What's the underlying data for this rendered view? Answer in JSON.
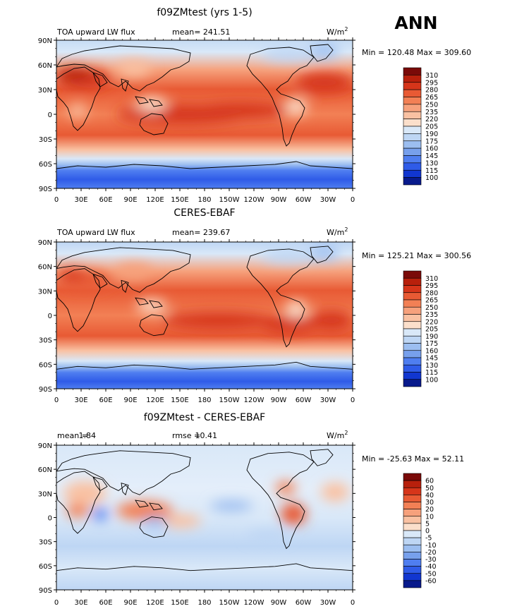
{
  "figure": {
    "season": "ANN",
    "units": "W/m",
    "units_sup": "2"
  },
  "chart_data": [
    {
      "type": "heatmap",
      "title": "f09ZMtest (yrs 1-5)",
      "variable": "TOA upward LW flux",
      "mean_text": "mean= 241.51",
      "stats_text": "Min = 120.48 Max = 309.60",
      "min": 120.48,
      "max": 309.6,
      "mean": 241.51,
      "lat_ticks": [
        "90N",
        "60N",
        "30N",
        "0",
        "30S",
        "60S",
        "90S"
      ],
      "lon_ticks": [
        "0",
        "30E",
        "60E",
        "90E",
        "120E",
        "150E",
        "180",
        "150W",
        "120W",
        "90W",
        "60W",
        "30W",
        "0"
      ],
      "colorbar_levels": [
        310,
        295,
        280,
        265,
        250,
        235,
        220,
        205,
        190,
        175,
        160,
        145,
        130,
        115,
        100
      ],
      "colorbar_colors": [
        "#7a0a08",
        "#b8200c",
        "#d6351a",
        "#e85a34",
        "#f28055",
        "#f6a17c",
        "#f9c1a2",
        "#fbdfcb",
        "#d9e8f8",
        "#bed6f4",
        "#9cbef0",
        "#77a0ec",
        "#4f7ef0",
        "#2f5be8",
        "#1136d0",
        "#081a8c"
      ]
    },
    {
      "type": "heatmap",
      "title": "CERES-EBAF",
      "variable": "TOA upward LW flux",
      "mean_text": "mean= 239.67",
      "stats_text": "Min = 125.21 Max = 300.56",
      "min": 125.21,
      "max": 300.56,
      "mean": 239.67,
      "lat_ticks": [
        "90N",
        "60N",
        "30N",
        "0",
        "30S",
        "60S",
        "90S"
      ],
      "lon_ticks": [
        "0",
        "30E",
        "60E",
        "90E",
        "120E",
        "150E",
        "180",
        "150W",
        "120W",
        "90W",
        "60W",
        "30W",
        "0"
      ],
      "colorbar_levels": [
        310,
        295,
        280,
        265,
        250,
        235,
        220,
        205,
        190,
        175,
        160,
        145,
        130,
        115,
        100
      ],
      "colorbar_colors": [
        "#7a0a08",
        "#b8200c",
        "#d6351a",
        "#e85a34",
        "#f28055",
        "#f6a17c",
        "#f9c1a2",
        "#fbdfcb",
        "#d9e8f8",
        "#bed6f4",
        "#9cbef0",
        "#77a0ec",
        "#4f7ef0",
        "#2f5be8",
        "#1136d0",
        "#081a8c"
      ]
    },
    {
      "type": "heatmap",
      "title": "f09ZMtest - CERES-EBAF",
      "mean_label": "mean =",
      "mean_value": "1.84",
      "rmse_label": "rmse =",
      "rmse_value": "10.41",
      "stats_text": "Min = -25.63 Max =  52.11",
      "min": -25.63,
      "max": 52.11,
      "mean": 1.84,
      "rmse": 10.41,
      "lat_ticks": [
        "90N",
        "60N",
        "30N",
        "0",
        "30S",
        "60S",
        "90S"
      ],
      "lon_ticks": [
        "0",
        "30E",
        "60E",
        "90E",
        "120E",
        "150E",
        "180",
        "150W",
        "120W",
        "90W",
        "60W",
        "30W",
        "0"
      ],
      "colorbar_levels": [
        60,
        50,
        40,
        30,
        20,
        10,
        5,
        0,
        -5,
        -10,
        -20,
        -30,
        -40,
        -50,
        -60
      ],
      "colorbar_colors": [
        "#7a0a08",
        "#b8200c",
        "#d6351a",
        "#e85a34",
        "#f28055",
        "#f6a17c",
        "#f9c1a2",
        "#fbdfcb",
        "#d9e8f8",
        "#bed6f4",
        "#9cbef0",
        "#77a0ec",
        "#4f7ef0",
        "#2f5be8",
        "#1136d0",
        "#081a8c"
      ]
    }
  ]
}
